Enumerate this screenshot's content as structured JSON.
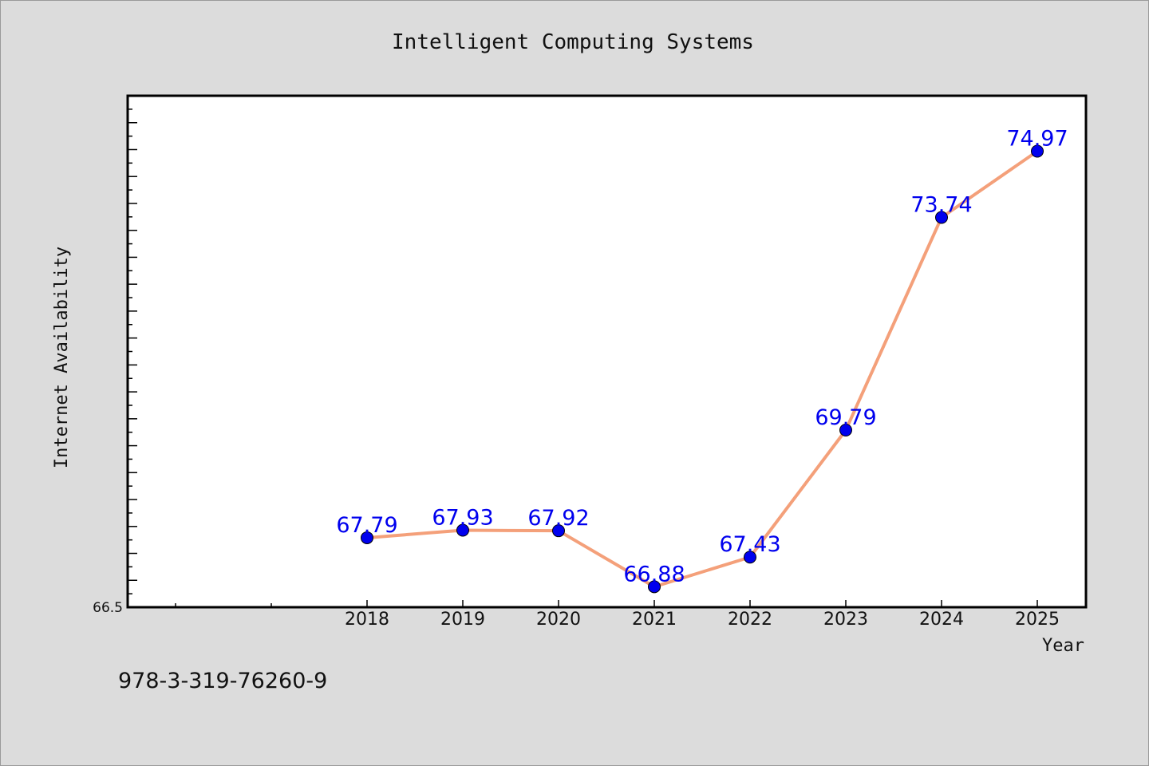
{
  "chart_data": {
    "type": "line",
    "title": "Intelligent Computing Systems",
    "xlabel": "Year",
    "ylabel": "Internet Availability",
    "categories": [
      "2018",
      "2019",
      "2020",
      "2021",
      "2022",
      "2023",
      "2024",
      "2025"
    ],
    "series": [
      {
        "values": [
          67.79,
          67.93,
          67.92,
          66.88,
          67.43,
          69.79,
          73.74,
          74.97
        ],
        "data_labels": [
          "67.79",
          "67.93",
          "67.92",
          "66.88",
          "67.43",
          "69.79",
          "73.74",
          "74.97"
        ]
      }
    ],
    "ylim": [
      66.5,
      76.0
    ],
    "y_tick_labels": [
      "66.5"
    ],
    "grid": false,
    "line_color": "#f4a07a",
    "marker_color": "#0000ee",
    "label_color": "#0000ee"
  },
  "footer_text": "978-3-319-76260-9"
}
